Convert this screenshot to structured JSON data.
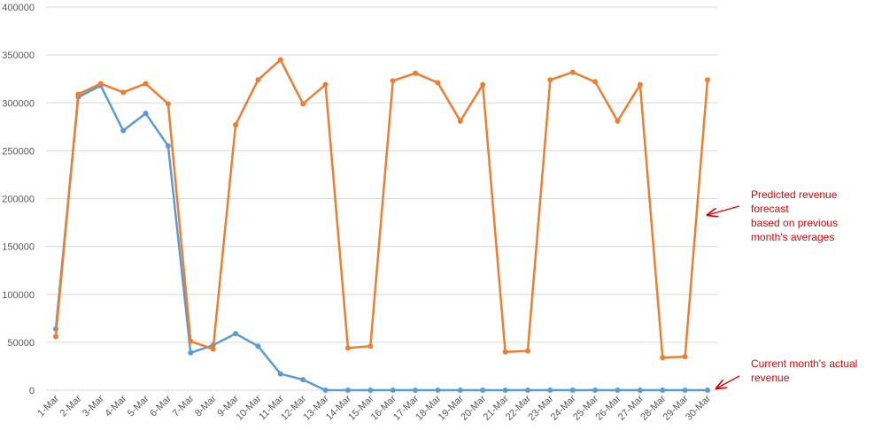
{
  "chart_data": {
    "type": "line",
    "categories": [
      "1-Mar",
      "2-Mar",
      "3-Mar",
      "4-Mar",
      "5-Mar",
      "6-Mar",
      "7-Mar",
      "8-Mar",
      "9-Mar",
      "10-Mar",
      "11-Mar",
      "12-Mar",
      "13-Mar",
      "14-Mar",
      "15-Mar",
      "16-Mar",
      "17-Mar",
      "18-Mar",
      "19-Mar",
      "20-Mar",
      "21-Mar",
      "22-Mar",
      "23-Mar",
      "24-Mar",
      "25-Mar",
      "26-Mar",
      "27-Mar",
      "28-Mar",
      "29-Mar",
      "30-Mar"
    ],
    "series": [
      {
        "color": "#5b9bd5",
        "values": [
          64000,
          306000,
          318000,
          271000,
          289000,
          255000,
          39000,
          47000,
          59000,
          46000,
          17000,
          11000,
          0,
          0,
          0,
          0,
          0,
          0,
          0,
          0,
          0,
          0,
          0,
          0,
          0,
          0,
          0,
          0,
          0,
          0
        ]
      },
      {
        "color": "#ed7d31",
        "values": [
          56000,
          309000,
          320000,
          311000,
          320000,
          299000,
          51000,
          43000,
          277000,
          324000,
          345000,
          299000,
          319000,
          44000,
          46000,
          323000,
          331000,
          321000,
          281000,
          319000,
          40000,
          41000,
          324000,
          332000,
          322000,
          281000,
          319000,
          34000,
          35000,
          324000
        ]
      }
    ],
    "ylim": [
      0,
      400000
    ],
    "yticks": [
      0,
      50000,
      100000,
      150000,
      200000,
      250000,
      300000,
      350000,
      400000
    ],
    "grid": true,
    "annotations": [
      {
        "lines": [
          "Predicted revenue",
          "forecast",
          "based on previous",
          "month's averages"
        ],
        "color": "#e00000"
      },
      {
        "lines": [
          "Current month's actual",
          "revenue"
        ],
        "color": "#e00000"
      }
    ]
  }
}
